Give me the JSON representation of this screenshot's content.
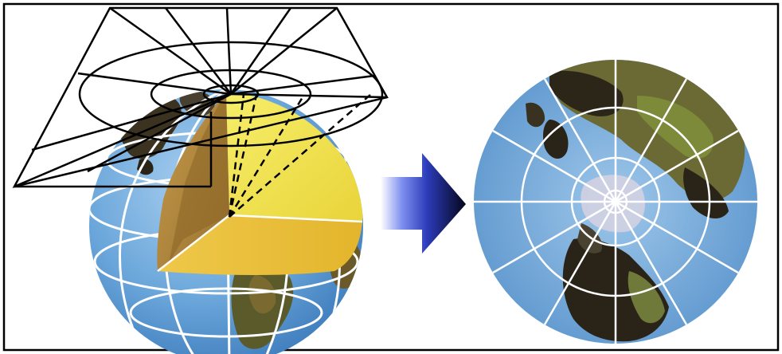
{
  "figure": {
    "left_panel": "globe-with-projection-plane",
    "middle": "arrow",
    "right_panel": "polar-projection-map"
  },
  "colors": {
    "ocean": "#6aa6da",
    "ocean_light": "#9fc6ea",
    "land_dark": "#2a2418",
    "land_brown": "#7a5a2a",
    "land_green": "#6f7a3a",
    "cutaway_yellow": "#f2e64a",
    "cutaway_gold": "#e8c23a",
    "cutaway_brown": "#b0863a",
    "grid_line": "#ffffff",
    "plane_line": "#000000",
    "arrow_dark": "#101030",
    "arrow_blue": "#3a4fd0",
    "border": "#000000"
  }
}
